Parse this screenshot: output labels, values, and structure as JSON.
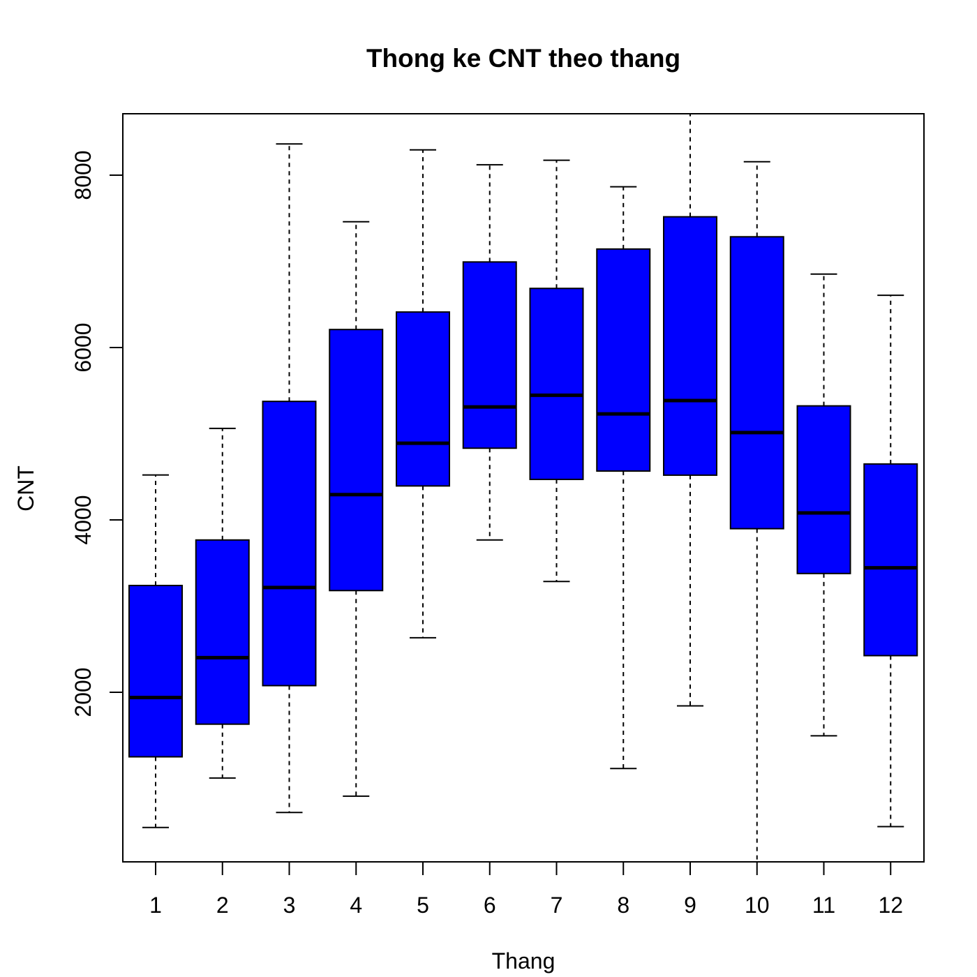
{
  "chart_data": {
    "type": "boxplot",
    "title": "Thong ke CNT theo thang",
    "xlabel": "Thang",
    "ylabel": "CNT",
    "categories": [
      "1",
      "2",
      "3",
      "4",
      "5",
      "6",
      "7",
      "8",
      "9",
      "10",
      "11",
      "12"
    ],
    "yticks": [
      "2000",
      "4000",
      "6000",
      "8000"
    ],
    "ylim": [
      22,
      8714
    ],
    "box_color": "#0000ff",
    "stat_order": [
      "lower_whisker",
      "q1",
      "median",
      "q3",
      "upper_whisker"
    ],
    "values": [
      [
        431,
        1251,
        1939,
        3239,
        4521
      ],
      [
        1005,
        1630,
        2402,
        3767,
        5062
      ],
      [
        605,
        2077,
        3216,
        5375,
        8362
      ],
      [
        795,
        3180,
        4294,
        6209,
        7460
      ],
      [
        2633,
        4394,
        4890,
        6412,
        8294
      ],
      [
        3767,
        4832,
        5311,
        6993,
        8120
      ],
      [
        3285,
        4470,
        5446,
        6686,
        8173
      ],
      [
        1115,
        4567,
        5230,
        7143,
        7865
      ],
      [
        1842,
        4519,
        5385,
        7517,
        8714
      ],
      [
        22,
        3898,
        5013,
        7285,
        8156
      ],
      [
        1495,
        3378,
        4081,
        5323,
        6852
      ],
      [
        441,
        2425,
        3444,
        4649,
        6606
      ]
    ]
  }
}
